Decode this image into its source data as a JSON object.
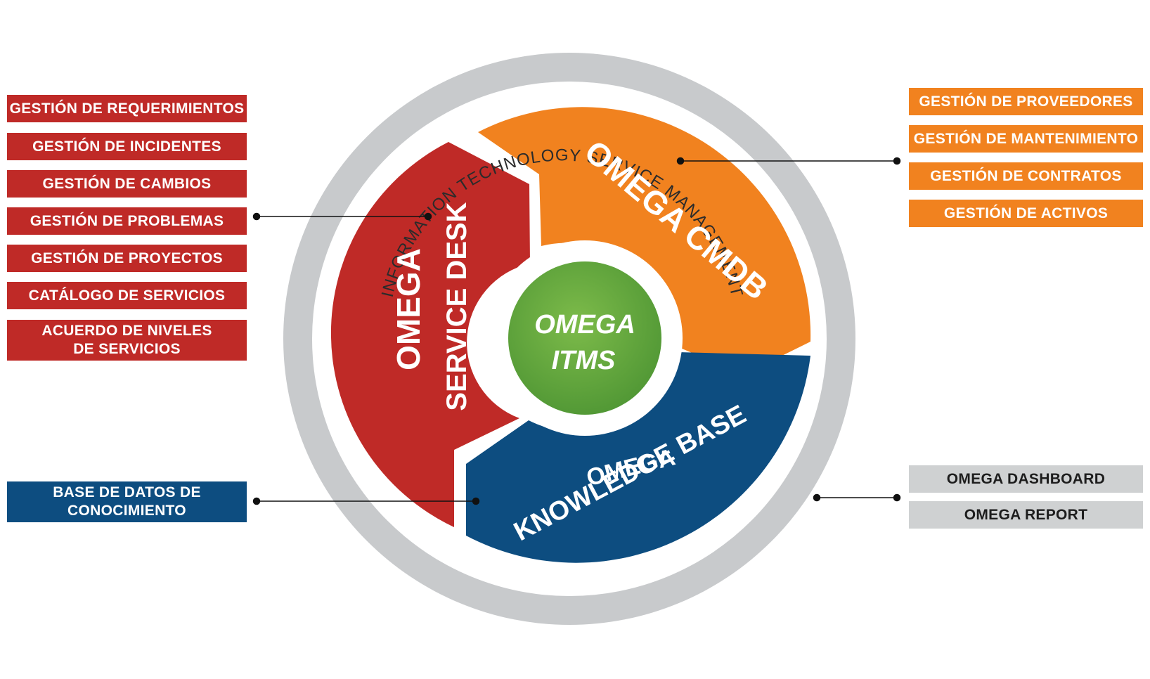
{
  "ring": {
    "label": "INFORMATION TECHNOLOGY SERVICE MANAGEMENT"
  },
  "core": {
    "line1": "OMEGA",
    "line2": "ITMS"
  },
  "segments": {
    "service_desk": {
      "line1": "OMEGA",
      "line2": "SERVICE DESK"
    },
    "cmdb": {
      "label": "OMEGA CMDB"
    },
    "knowledge_base": {
      "line1": "OMEGA",
      "line2": "KNOWLEDGE BASE"
    }
  },
  "left_red": [
    "GESTIÓN DE REQUERIMIENTOS",
    "GESTIÓN DE INCIDENTES",
    "GESTIÓN DE CAMBIOS",
    "GESTIÓN DE PROBLEMAS",
    "GESTIÓN DE PROYECTOS",
    "CATÁLOGO DE SERVICIOS",
    "ACUERDO DE NIVELES\nDE SERVICIOS"
  ],
  "left_blue": [
    "BASE DE DATOS DE\nCONOCIMIENTO"
  ],
  "right_orange": [
    "GESTIÓN DE PROVEEDORES",
    "GESTIÓN DE MANTENIMIENTO",
    "GESTIÓN DE CONTRATOS",
    "GESTIÓN DE ACTIVOS"
  ],
  "right_gray": [
    "OMEGA DASHBOARD",
    "OMEGA REPORT"
  ],
  "colors": {
    "service_desk": "#bf2a27",
    "cmdb": "#f1821f",
    "knowledge_base": "#0d4d80",
    "core": "#5fa03c",
    "ring": "#c8cacc"
  }
}
